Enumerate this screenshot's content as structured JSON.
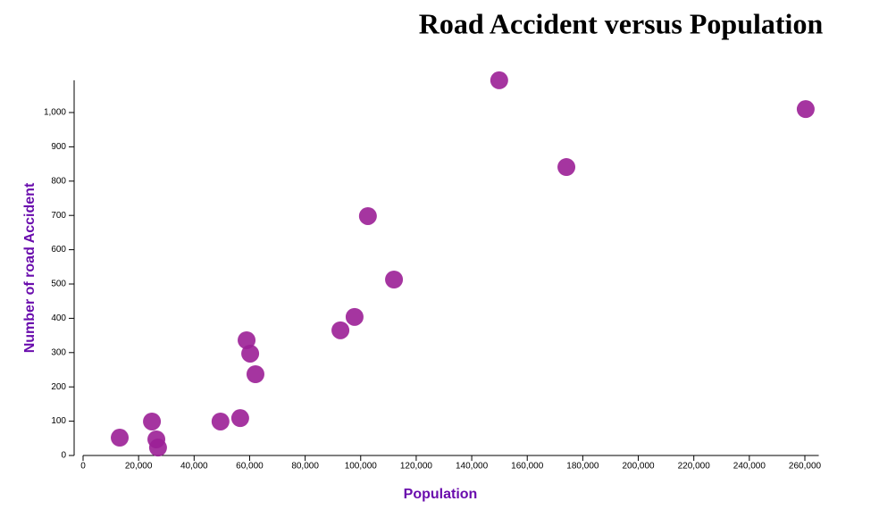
{
  "chart_data": {
    "type": "scatter",
    "title": "Road Accident versus Population",
    "x_label": "Population",
    "y_label": "Number of road Accident",
    "color": "#9b1f96",
    "x": [
      13200,
      24800,
      26400,
      27000,
      49500,
      56600,
      58900,
      60200,
      62100,
      92700,
      97800,
      102600,
      112000,
      149900,
      174100,
      260300
    ],
    "values": [
      52,
      99,
      47,
      23,
      99,
      109,
      336,
      297,
      237,
      365,
      404,
      698,
      513,
      1094,
      841,
      1010
    ],
    "xlim": [
      0,
      265000
    ],
    "ylim": [
      0,
      1094
    ],
    "xticks": [
      0,
      {
        "value": 20000,
        "label": "20,000"
      },
      {
        "value": 40000,
        "label": "40,000"
      },
      {
        "value": 60000,
        "label": "60,000"
      },
      {
        "value": 80000,
        "label": "80,000"
      },
      {
        "value": 100000,
        "label": "100,000"
      },
      {
        "value": 120000,
        "label": "120,000"
      },
      {
        "value": 140000,
        "label": "140,000"
      },
      {
        "value": 160000,
        "label": "160,000"
      },
      {
        "value": 180000,
        "label": "180,000"
      },
      {
        "value": 200000,
        "label": "200,000"
      },
      {
        "value": 220000,
        "label": "220,000"
      },
      {
        "value": 240000,
        "label": "240,000"
      },
      {
        "value": 260000,
        "label": "260,000"
      }
    ],
    "yticks": [
      0,
      100,
      200,
      300,
      400,
      500,
      600,
      700,
      800,
      900,
      {
        "value": 1000,
        "label": "1,000"
      }
    ]
  }
}
